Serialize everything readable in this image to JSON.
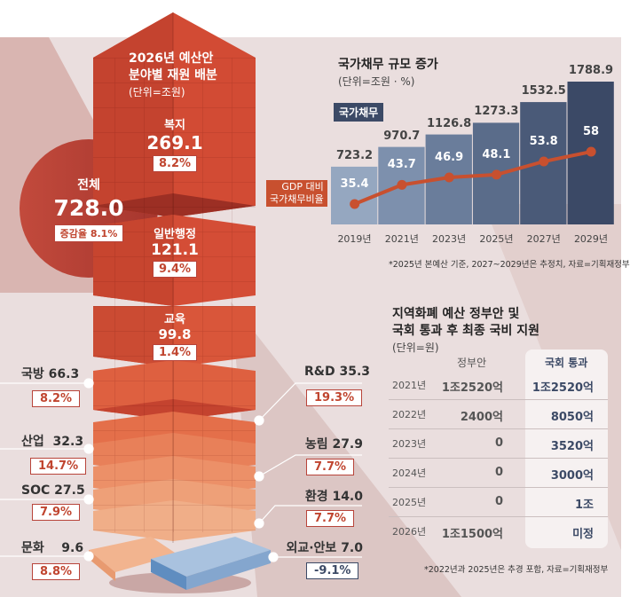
{
  "budget": {
    "title_line1": "2026년 예산안",
    "title_line2": "분야별 재원 배분",
    "unit": "(단위=조원)",
    "total": {
      "label": "전체",
      "value": "728.0",
      "rate_label": "증감율",
      "rate": "8.1%"
    },
    "tower": [
      {
        "name": "복지",
        "value": "269.1",
        "rate": "8.2%"
      },
      {
        "name": "일반행정",
        "value": "121.1",
        "rate": "9.4%"
      },
      {
        "name": "교육",
        "value": "99.8",
        "rate": "1.4%"
      }
    ],
    "left": [
      {
        "name": "국방",
        "value": "66.3",
        "rate": "8.2%"
      },
      {
        "name": "산업",
        "value": "32.3",
        "rate": "14.7%"
      },
      {
        "name": "SOC",
        "value": "27.5",
        "rate": "7.9%"
      },
      {
        "name": "문화",
        "value": "9.6",
        "rate": "8.8%"
      }
    ],
    "right": [
      {
        "name": "R&D",
        "value": "35.3",
        "rate": "19.3%"
      },
      {
        "name": "농림",
        "value": "27.9",
        "rate": "7.7%"
      },
      {
        "name": "환경",
        "value": "14.0",
        "rate": "7.7%"
      },
      {
        "name": "외교·안보",
        "value": "7.0",
        "rate": "-9.1%"
      }
    ]
  },
  "chart_data": {
    "type": "bar",
    "title": "국가채무 규모 증가",
    "unit": "(단위=조원 · %)",
    "categories": [
      "2019년",
      "2021년",
      "2023년",
      "2025년",
      "2027년",
      "2029년"
    ],
    "series": [
      {
        "name": "국가채무",
        "type": "bar",
        "values": [
          723.2,
          970.7,
          1126.8,
          1273.3,
          1532.5,
          1788.9
        ],
        "color": "#4a5a78"
      },
      {
        "name": "GDP 대비 국가채무비율",
        "type": "line",
        "values": [
          35.4,
          43.7,
          46.9,
          48.1,
          53.8,
          58.0
        ],
        "color": "#c8502f"
      }
    ],
    "legend": {
      "debt": "국가채무",
      "ratio_line1": "GDP 대비",
      "ratio_line2": "국가채무비율"
    },
    "note": "*2025년 본예산 기준, 2027~2029년은 추정치, 자료=기획재정부"
  },
  "table": {
    "title_line1": "지역화폐 예산 정부안 및",
    "title_line2": "국회 통과 후 최종 국비 지원",
    "unit": "(단위=원)",
    "headers": [
      "정부안",
      "국회 통과"
    ],
    "rows": [
      [
        "2021년",
        "1조2520억",
        "1조2520억"
      ],
      [
        "2022년",
        "2400억",
        "8050억"
      ],
      [
        "2023년",
        "0",
        "3520억"
      ],
      [
        "2024년",
        "0",
        "3000억"
      ],
      [
        "2025년",
        "0",
        "1조"
      ],
      [
        "2026년",
        "1조1500억",
        "미정"
      ]
    ],
    "note": "*2022년과 2025년은 추경 포함, 자료=기획재정부"
  }
}
